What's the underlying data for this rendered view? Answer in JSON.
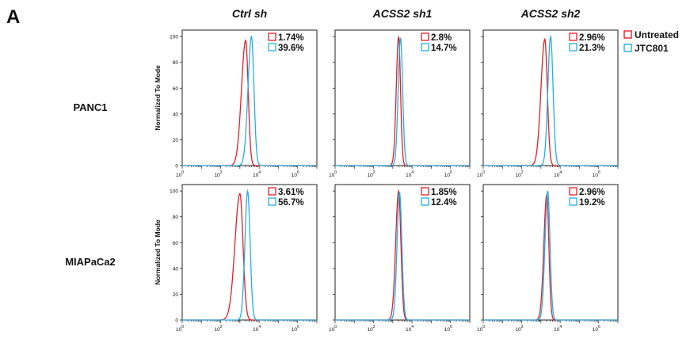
{
  "figure": {
    "panel_letter": "A",
    "legend": [
      {
        "label": "Untreated",
        "color": "#e0202a"
      },
      {
        "label": "JTC801",
        "color": "#27aee0"
      }
    ]
  },
  "chart_data": {
    "type": "histogram-grid",
    "x_scale": "log",
    "xlim": [
      1,
      10000000
    ],
    "ylim": [
      0,
      105
    ],
    "x_tick_labels": [
      {
        "base": "10",
        "exp": "0"
      },
      {
        "base": "10",
        "exp": "2"
      },
      {
        "base": "10",
        "exp": "4"
      },
      {
        "base": "10",
        "exp": "6"
      }
    ],
    "y_ticks": [
      0,
      20,
      40,
      60,
      80,
      100
    ],
    "ylabel": "Normalized To Mode",
    "columns": [
      "Ctrl sh",
      "ACSS2 sh1",
      "ACSS2 sh2"
    ],
    "rows": [
      "PANC1",
      "MIAPaCa2"
    ],
    "panels": [
      {
        "row": "PANC1",
        "column": "Ctrl sh",
        "series": [
          {
            "name": "Untreated",
            "color": "#e0202a",
            "percent": "1.74%",
            "peak_x": 1995,
            "peak_y": 97,
            "width_left": 0.22,
            "width_right": 0.13
          },
          {
            "name": "JTC801",
            "color": "#27aee0",
            "percent": "39.6%",
            "peak_x": 3981,
            "peak_y": 100,
            "width_left": 0.18,
            "width_right": 0.13
          }
        ]
      },
      {
        "row": "PANC1",
        "column": "ACSS2 sh1",
        "series": [
          {
            "name": "Untreated",
            "color": "#e0202a",
            "percent": "2.8%",
            "peak_x": 1995,
            "peak_y": 100,
            "width_left": 0.12,
            "width_right": 0.1
          },
          {
            "name": "JTC801",
            "color": "#27aee0",
            "percent": "14.7%",
            "peak_x": 2512,
            "peak_y": 99,
            "width_left": 0.12,
            "width_right": 0.11
          }
        ]
      },
      {
        "row": "PANC1",
        "column": "ACSS2 sh2",
        "series": [
          {
            "name": "Untreated",
            "color": "#e0202a",
            "percent": "2.96%",
            "peak_x": 1585,
            "peak_y": 98,
            "width_left": 0.2,
            "width_right": 0.13
          },
          {
            "name": "JTC801",
            "color": "#27aee0",
            "percent": "21.3%",
            "peak_x": 3162,
            "peak_y": 100,
            "width_left": 0.14,
            "width_right": 0.13
          }
        ]
      },
      {
        "row": "MIAPaCa2",
        "column": "Ctrl sh",
        "series": [
          {
            "name": "Untreated",
            "color": "#e0202a",
            "percent": "3.61%",
            "peak_x": 1000,
            "peak_y": 98,
            "width_left": 0.26,
            "width_right": 0.16
          },
          {
            "name": "JTC801",
            "color": "#27aee0",
            "percent": "56.7%",
            "peak_x": 2512,
            "peak_y": 100,
            "width_left": 0.14,
            "width_right": 0.13
          }
        ]
      },
      {
        "row": "MIAPaCa2",
        "column": "ACSS2 sh1",
        "series": [
          {
            "name": "Untreated",
            "color": "#e0202a",
            "percent": "1.85%",
            "peak_x": 1995,
            "peak_y": 100,
            "width_left": 0.15,
            "width_right": 0.12
          },
          {
            "name": "JTC801",
            "color": "#27aee0",
            "percent": "12.4%",
            "peak_x": 2239,
            "peak_y": 99,
            "width_left": 0.13,
            "width_right": 0.12
          }
        ]
      },
      {
        "row": "MIAPaCa2",
        "column": "ACSS2 sh2",
        "series": [
          {
            "name": "Untreated",
            "color": "#e0202a",
            "percent": "2.96%",
            "peak_x": 1995,
            "peak_y": 97,
            "width_left": 0.15,
            "width_right": 0.11
          },
          {
            "name": "JTC801",
            "color": "#27aee0",
            "percent": "19.2%",
            "peak_x": 2239,
            "peak_y": 100,
            "width_left": 0.14,
            "width_right": 0.12
          }
        ]
      }
    ]
  }
}
